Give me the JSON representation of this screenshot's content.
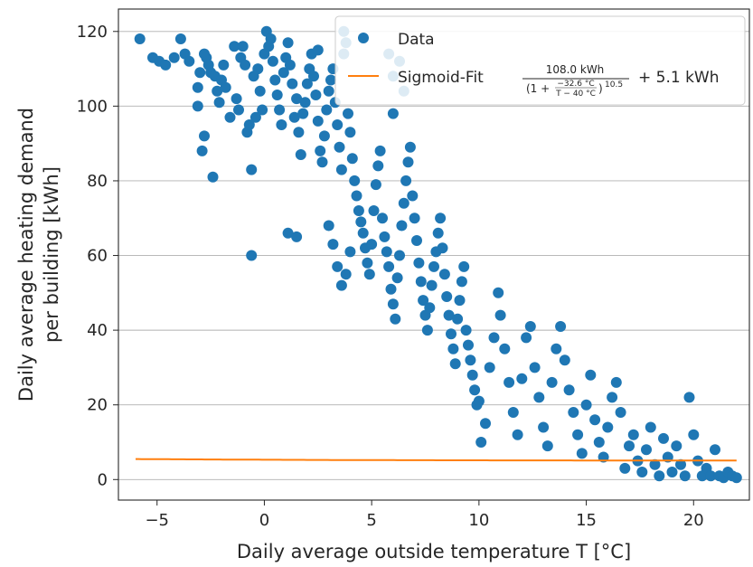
{
  "chart_data": {
    "type": "scatter",
    "xlabel": "Daily average outside temperature T [°C]",
    "ylabel_lines": [
      "Daily average heating demand",
      "per building [kWh]"
    ],
    "xlim": [
      -6.8,
      22.6
    ],
    "ylim": [
      -5.5,
      126
    ],
    "xticks": [
      -5,
      0,
      5,
      10,
      15,
      20
    ],
    "yticks": [
      0,
      20,
      40,
      60,
      80,
      100,
      120
    ],
    "grid": "horizontal",
    "legend_placement": "top-right",
    "colors": {
      "data": "#1f77b4",
      "fit": "#ff7f0e"
    },
    "legend": {
      "data_label": "Data",
      "fit_prefix": "Sigmoid-Fit",
      "fit_numerator": "108.0 kWh",
      "fit_denominator_open": "(1 + ",
      "fit_inner_numerator": "−32.6 °C",
      "fit_inner_denominator": "T − 40 °C",
      "fit_denominator_close": ")",
      "fit_exponent": "10.5",
      "fit_suffix": "+ 5.1 kWh"
    },
    "fit": {
      "A": 108.0,
      "c": 5.1,
      "k": -32.6,
      "T0": 40,
      "n": 10.5
    },
    "series": [
      {
        "name": "Data",
        "points": [
          [
            -5.8,
            118
          ],
          [
            -5.2,
            113
          ],
          [
            -4.9,
            112
          ],
          [
            -4.6,
            111
          ],
          [
            -4.2,
            113
          ],
          [
            -3.9,
            118
          ],
          [
            -3.7,
            114
          ],
          [
            -3.5,
            112
          ],
          [
            -3.1,
            105
          ],
          [
            -3,
            109
          ],
          [
            -2.8,
            114
          ],
          [
            -2.7,
            113
          ],
          [
            -2.6,
            111
          ],
          [
            -2.5,
            109
          ],
          [
            -2.3,
            108
          ],
          [
            -2.2,
            104
          ],
          [
            -2.1,
            101
          ],
          [
            -3.1,
            100
          ],
          [
            -2.9,
            88
          ],
          [
            -2.8,
            92
          ],
          [
            -2.4,
            81
          ],
          [
            -2,
            107
          ],
          [
            -1.9,
            111
          ],
          [
            -1.8,
            105
          ],
          [
            -1.6,
            97
          ],
          [
            -1.4,
            116
          ],
          [
            -1.3,
            102
          ],
          [
            -1.2,
            99
          ],
          [
            -1.1,
            113
          ],
          [
            -1,
            116
          ],
          [
            -0.9,
            111
          ],
          [
            -0.8,
            93
          ],
          [
            -0.7,
            95
          ],
          [
            -0.6,
            83
          ],
          [
            -0.5,
            108
          ],
          [
            -0.4,
            97
          ],
          [
            -0.6,
            60
          ],
          [
            -0.3,
            110
          ],
          [
            -0.2,
            104
          ],
          [
            -0.1,
            99
          ],
          [
            0,
            114
          ],
          [
            0.1,
            120
          ],
          [
            0.2,
            116
          ],
          [
            0.3,
            118
          ],
          [
            0.4,
            112
          ],
          [
            0.5,
            107
          ],
          [
            0.6,
            103
          ],
          [
            0.7,
            99
          ],
          [
            0.8,
            95
          ],
          [
            0.9,
            109
          ],
          [
            1,
            113
          ],
          [
            1.1,
            117
          ],
          [
            1.2,
            111
          ],
          [
            1.3,
            106
          ],
          [
            1.4,
            97
          ],
          [
            1.5,
            102
          ],
          [
            1.6,
            93
          ],
          [
            1.7,
            87
          ],
          [
            1.8,
            98
          ],
          [
            1.9,
            101
          ],
          [
            2,
            106
          ],
          [
            2.1,
            110
          ],
          [
            2.2,
            114
          ],
          [
            2.3,
            108
          ],
          [
            2.4,
            103
          ],
          [
            2.5,
            96
          ],
          [
            2.6,
            88
          ],
          [
            2.7,
            85
          ],
          [
            2.8,
            92
          ],
          [
            2.9,
            99
          ],
          [
            3,
            104
          ],
          [
            3.1,
            107
          ],
          [
            3.2,
            110
          ],
          [
            3.3,
            101
          ],
          [
            3.4,
            95
          ],
          [
            3.5,
            89
          ],
          [
            3.6,
            83
          ],
          [
            3.7,
            114
          ],
          [
            3.8,
            117
          ],
          [
            3.9,
            98
          ],
          [
            4,
            93
          ],
          [
            4.1,
            86
          ],
          [
            4.2,
            80
          ],
          [
            4.3,
            76
          ],
          [
            4.4,
            72
          ],
          [
            4.5,
            69
          ],
          [
            4.6,
            66
          ],
          [
            4.7,
            62
          ],
          [
            4.8,
            58
          ],
          [
            4.9,
            55
          ],
          [
            1.1,
            66
          ],
          [
            1.5,
            65
          ],
          [
            3,
            68
          ],
          [
            3.2,
            63
          ],
          [
            3.4,
            57
          ],
          [
            3.8,
            55
          ],
          [
            3.6,
            52
          ],
          [
            4,
            61
          ],
          [
            5,
            63
          ],
          [
            5.1,
            72
          ],
          [
            5.2,
            79
          ],
          [
            5.3,
            84
          ],
          [
            5.4,
            88
          ],
          [
            5.5,
            70
          ],
          [
            5.6,
            65
          ],
          [
            5.7,
            61
          ],
          [
            5.8,
            57
          ],
          [
            5.9,
            51
          ],
          [
            6,
            47
          ],
          [
            6.1,
            43
          ],
          [
            6.2,
            54
          ],
          [
            6.3,
            60
          ],
          [
            6.4,
            68
          ],
          [
            6.5,
            74
          ],
          [
            6.6,
            80
          ],
          [
            6.7,
            85
          ],
          [
            6.8,
            89
          ],
          [
            6.9,
            76
          ],
          [
            7,
            70
          ],
          [
            7.1,
            64
          ],
          [
            7.2,
            58
          ],
          [
            7.3,
            53
          ],
          [
            7.4,
            48
          ],
          [
            7.5,
            44
          ],
          [
            7.6,
            40
          ],
          [
            7.7,
            46
          ],
          [
            7.8,
            52
          ],
          [
            7.9,
            57
          ],
          [
            8,
            61
          ],
          [
            8.1,
            66
          ],
          [
            8.2,
            70
          ],
          [
            8.3,
            62
          ],
          [
            8.4,
            55
          ],
          [
            8.5,
            49
          ],
          [
            8.6,
            44
          ],
          [
            8.7,
            39
          ],
          [
            8.8,
            35
          ],
          [
            8.9,
            31
          ],
          [
            9,
            43
          ],
          [
            9.1,
            48
          ],
          [
            9.2,
            53
          ],
          [
            9.3,
            57
          ],
          [
            9.4,
            40
          ],
          [
            9.5,
            36
          ],
          [
            9.6,
            32
          ],
          [
            9.7,
            28
          ],
          [
            9.8,
            24
          ],
          [
            9.9,
            20
          ],
          [
            10,
            21
          ],
          [
            10.1,
            10
          ],
          [
            10.3,
            15
          ],
          [
            10.5,
            30
          ],
          [
            10.7,
            38
          ],
          [
            10.9,
            50
          ],
          [
            11,
            44
          ],
          [
            11.2,
            35
          ],
          [
            11.4,
            26
          ],
          [
            11.6,
            18
          ],
          [
            11.8,
            12
          ],
          [
            12,
            27
          ],
          [
            12.2,
            38
          ],
          [
            12.4,
            41
          ],
          [
            12.6,
            30
          ],
          [
            12.8,
            22
          ],
          [
            13,
            14
          ],
          [
            13.2,
            9
          ],
          [
            13.4,
            26
          ],
          [
            13.6,
            35
          ],
          [
            13.8,
            41
          ],
          [
            14,
            32
          ],
          [
            14.2,
            24
          ],
          [
            14.4,
            18
          ],
          [
            14.6,
            12
          ],
          [
            14.8,
            7
          ],
          [
            15,
            20
          ],
          [
            15.2,
            28
          ],
          [
            15.4,
            16
          ],
          [
            15.6,
            10
          ],
          [
            15.8,
            6
          ],
          [
            16,
            14
          ],
          [
            16.2,
            22
          ],
          [
            16.4,
            26
          ],
          [
            16.6,
            18
          ],
          [
            16.8,
            3
          ],
          [
            17,
            9
          ],
          [
            17.2,
            12
          ],
          [
            17.4,
            5
          ],
          [
            17.6,
            2
          ],
          [
            17.8,
            8
          ],
          [
            18,
            14
          ],
          [
            18.2,
            4
          ],
          [
            18.4,
            1
          ],
          [
            18.6,
            11
          ],
          [
            18.8,
            6
          ],
          [
            19,
            2
          ],
          [
            19.2,
            9
          ],
          [
            19.4,
            4
          ],
          [
            19.6,
            1
          ],
          [
            19.8,
            22
          ],
          [
            20,
            12
          ],
          [
            20.2,
            5
          ],
          [
            20.4,
            1
          ],
          [
            20.6,
            3
          ],
          [
            20.8,
            1
          ],
          [
            21,
            8
          ],
          [
            21.2,
            1
          ],
          [
            21.4,
            0.5
          ],
          [
            21.6,
            2
          ],
          [
            21.8,
            1
          ],
          [
            22,
            0.5
          ],
          [
            6,
            108
          ],
          [
            6.3,
            112
          ],
          [
            5.8,
            114
          ],
          [
            6.5,
            104
          ],
          [
            6,
            98
          ],
          [
            2.5,
            115
          ],
          [
            3.7,
            120
          ]
        ]
      },
      {
        "name": "Sigmoid-Fit",
        "x_range": [
          -6,
          22
        ]
      }
    ]
  }
}
